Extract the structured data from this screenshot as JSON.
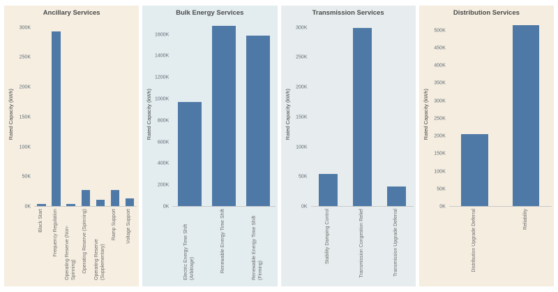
{
  "colors": {
    "bar": "#4e79a7",
    "axis_line": "#c9c9c9",
    "title_text": "#4a4a4a",
    "tick_text": "#5f6a74",
    "label_text": "#6b6b6b"
  },
  "chart_data": [
    {
      "type": "bar",
      "title": "Ancillary Services",
      "ylabel": "Rated Capacity (kWh)",
      "unit": "thousand kWh",
      "ylim": [
        0,
        310
      ],
      "yticks": [
        "0K",
        "50K",
        "100K",
        "150K",
        "200K",
        "250K",
        "300K"
      ],
      "categories": [
        "Black Start",
        "Frequency Regulation",
        "Operating Reserve (Non-Spinning)",
        "Operating Reserve (Spinning)",
        "Operating Reserve (Supplementary)",
        "Ramp Support",
        "Voltage Support"
      ],
      "values": [
        3,
        293,
        4,
        27,
        11,
        27,
        13
      ],
      "grid": false,
      "legend": false,
      "background": "#f5eee1",
      "bar_width": "58%"
    },
    {
      "type": "bar",
      "title": "Bulk Energy Services",
      "ylabel": "Rated Capacity (kWh)",
      "unit": "thousand kWh",
      "ylim": [
        0,
        1720
      ],
      "yticks": [
        "0K",
        "200K",
        "400K",
        "600K",
        "800K",
        "1000K",
        "1200K",
        "1400K",
        "1600K"
      ],
      "categories": [
        "Electric Energy Time Shift (Arbitrage)",
        "Renewable Energy Time Shift",
        "Renewable Energy Time Shift (Firming)"
      ],
      "values": [
        970,
        1680,
        1590
      ],
      "grid": false,
      "legend": false,
      "background": "#e3edf0",
      "bar_width": "70%"
    },
    {
      "type": "bar",
      "title": "Transmission Services",
      "ylabel": "Rated Capacity (kWh)",
      "unit": "thousand kWh",
      "ylim": [
        0,
        310
      ],
      "yticks": [
        "0K",
        "50K",
        "100K",
        "150K",
        "200K",
        "250K",
        "300K"
      ],
      "categories": [
        "Stability Damping Control",
        "Transmission Congestion Relief",
        "Transmission Upgrade Deferral"
      ],
      "values": [
        54,
        300,
        33
      ],
      "grid": false,
      "legend": false,
      "background": "#e7edee",
      "bar_width": "55%"
    },
    {
      "type": "bar",
      "title": "Distribution Services",
      "ylabel": "Rated Capacity (kWh)",
      "unit": "thousand kWh",
      "ylim": [
        0,
        525
      ],
      "yticks": [
        "0K",
        "50K",
        "100K",
        "150K",
        "200K",
        "250K",
        "300K",
        "350K",
        "400K",
        "450K",
        "500K"
      ],
      "categories": [
        "Distribution Upgrade Deferral",
        "Reliability"
      ],
      "values": [
        205,
        515
      ],
      "grid": false,
      "legend": false,
      "background": "#f4ede0",
      "bar_width": "52%"
    }
  ]
}
